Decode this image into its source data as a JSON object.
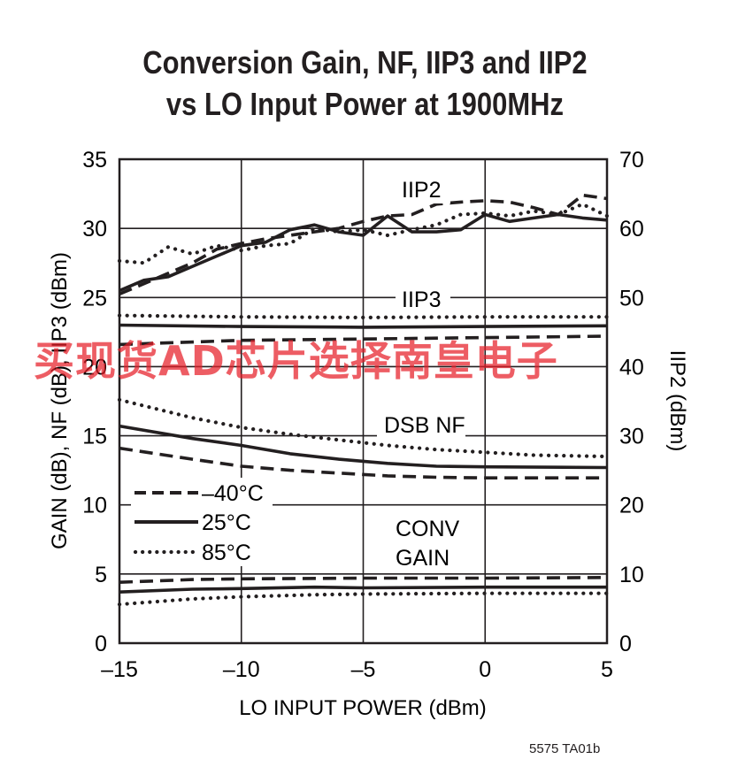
{
  "chart_data": {
    "type": "line",
    "title": [
      "Conversion Gain, NF, IIP3 and IIP2",
      "vs LO Input Power at 1900MHz"
    ],
    "xlabel": "LO INPUT POWER (dBm)",
    "ylabel_left": "GAIN (dB), NF (dB), IIP3 (dBm)",
    "ylabel_right": "IIP2 (dBm)",
    "xlim": [
      -15,
      5
    ],
    "ylim_left": [
      0,
      35
    ],
    "ylim_right": [
      0,
      70
    ],
    "xticks": [
      -15,
      -10,
      -5,
      0,
      5
    ],
    "xtick_labels": [
      "–15",
      "–10",
      "–5",
      "0",
      "5"
    ],
    "yticks_left": [
      0,
      5,
      10,
      15,
      20,
      25,
      30,
      35
    ],
    "yticks_right": [
      0,
      10,
      20,
      30,
      40,
      50,
      60,
      70
    ],
    "grid": true,
    "legend": [
      {
        "label": "–40°C",
        "style": "dashed"
      },
      {
        "label": "25°C",
        "style": "solid"
      },
      {
        "label": "85°C",
        "style": "dotted"
      }
    ],
    "annotations": {
      "iip2": "IIP2",
      "iip3": "IIP3",
      "dsbnf": "DSB NF",
      "conv1": "CONV",
      "conv2": "GAIN"
    },
    "series": [
      {
        "group": "IIP2",
        "temp": "–40°C",
        "axis": "right",
        "points": [
          [
            -15,
            50.5
          ],
          [
            -14,
            52
          ],
          [
            -13,
            53.5
          ],
          [
            -12,
            55
          ],
          [
            -11,
            57
          ],
          [
            -10,
            57.8
          ],
          [
            -9,
            58.5
          ],
          [
            -8,
            59
          ],
          [
            -7,
            59.5
          ],
          [
            -6,
            60
          ],
          [
            -5,
            61
          ],
          [
            -4,
            61.8
          ],
          [
            -3,
            62
          ],
          [
            -2,
            63.5
          ],
          [
            -1,
            63.8
          ],
          [
            0,
            64
          ],
          [
            1,
            63.8
          ],
          [
            2,
            63
          ],
          [
            3,
            62
          ],
          [
            4,
            64.8
          ],
          [
            5,
            64.3
          ]
        ]
      },
      {
        "group": "IIP2",
        "temp": "25°C",
        "axis": "right",
        "points": [
          [
            -15,
            51
          ],
          [
            -14,
            52.5
          ],
          [
            -13,
            53
          ],
          [
            -12,
            54.5
          ],
          [
            -11,
            56
          ],
          [
            -10,
            57.5
          ],
          [
            -9,
            58
          ],
          [
            -8,
            59.8
          ],
          [
            -7,
            60.5
          ],
          [
            -6,
            59.5
          ],
          [
            -5,
            59
          ],
          [
            -4,
            61.8
          ],
          [
            -3,
            59.5
          ],
          [
            -2,
            59.5
          ],
          [
            -1,
            59.8
          ],
          [
            0,
            62
          ],
          [
            1,
            61
          ],
          [
            2,
            61.5
          ],
          [
            3,
            62
          ],
          [
            4,
            61.5
          ],
          [
            5,
            61.2
          ]
        ]
      },
      {
        "group": "IIP2",
        "temp": "85°C",
        "axis": "right",
        "points": [
          [
            -15,
            55.3
          ],
          [
            -14,
            55
          ],
          [
            -13,
            57.3
          ],
          [
            -12,
            56.3
          ],
          [
            -11,
            57.5
          ],
          [
            -10,
            56.8
          ],
          [
            -9,
            57.5
          ],
          [
            -8,
            57.8
          ],
          [
            -7,
            60
          ],
          [
            -6,
            59.5
          ],
          [
            -5,
            59.8
          ],
          [
            -4,
            59
          ],
          [
            -3,
            59.8
          ],
          [
            -2,
            60.5
          ],
          [
            -1,
            62
          ],
          [
            0,
            62.2
          ],
          [
            1,
            61.8
          ],
          [
            2,
            62.5
          ],
          [
            3,
            62
          ],
          [
            4,
            63.5
          ],
          [
            5,
            61.8
          ]
        ]
      },
      {
        "group": "IIP3",
        "temp": "–40°C",
        "axis": "left",
        "points": [
          [
            -15,
            21.6
          ],
          [
            -10,
            21.9
          ],
          [
            -5,
            22.0
          ],
          [
            0,
            22.1
          ],
          [
            5,
            22.2
          ]
        ]
      },
      {
        "group": "IIP3",
        "temp": "25°C",
        "axis": "left",
        "points": [
          [
            -15,
            23.0
          ],
          [
            -10,
            22.9
          ],
          [
            -5,
            22.85
          ],
          [
            0,
            22.9
          ],
          [
            5,
            22.95
          ]
        ]
      },
      {
        "group": "IIP3",
        "temp": "85°C",
        "axis": "left",
        "points": [
          [
            -15,
            23.7
          ],
          [
            -10,
            23.6
          ],
          [
            -5,
            23.55
          ],
          [
            0,
            23.6
          ],
          [
            5,
            23.6
          ]
        ]
      },
      {
        "group": "DSB NF",
        "temp": "–40°C",
        "axis": "left",
        "points": [
          [
            -15,
            14.1
          ],
          [
            -12,
            13.3
          ],
          [
            -10,
            12.8
          ],
          [
            -8,
            12.5
          ],
          [
            -6,
            12.3
          ],
          [
            -4,
            12.1
          ],
          [
            -2,
            12.0
          ],
          [
            0,
            11.95
          ],
          [
            5,
            11.95
          ]
        ]
      },
      {
        "group": "DSB NF",
        "temp": "25°C",
        "axis": "left",
        "points": [
          [
            -15,
            15.7
          ],
          [
            -12,
            14.8
          ],
          [
            -10,
            14.3
          ],
          [
            -8,
            13.7
          ],
          [
            -6,
            13.3
          ],
          [
            -4,
            13.0
          ],
          [
            -2,
            12.8
          ],
          [
            0,
            12.75
          ],
          [
            5,
            12.7
          ]
        ]
      },
      {
        "group": "DSB NF",
        "temp": "85°C",
        "axis": "left",
        "points": [
          [
            -15,
            17.6
          ],
          [
            -12,
            16.3
          ],
          [
            -10,
            15.6
          ],
          [
            -8,
            15.1
          ],
          [
            -6,
            14.7
          ],
          [
            -4,
            14.3
          ],
          [
            -2,
            14.0
          ],
          [
            0,
            13.8
          ],
          [
            2,
            13.6
          ],
          [
            5,
            13.5
          ]
        ]
      },
      {
        "group": "CONV GAIN",
        "temp": "–40°C",
        "axis": "left",
        "points": [
          [
            -15,
            4.4
          ],
          [
            -12,
            4.6
          ],
          [
            -10,
            4.65
          ],
          [
            -5,
            4.7
          ],
          [
            0,
            4.7
          ],
          [
            5,
            4.75
          ]
        ]
      },
      {
        "group": "CONV GAIN",
        "temp": "25°C",
        "axis": "left",
        "points": [
          [
            -15,
            3.7
          ],
          [
            -12,
            3.9
          ],
          [
            -10,
            3.95
          ],
          [
            -7,
            4.05
          ],
          [
            -5,
            4.0
          ],
          [
            0,
            4.05
          ],
          [
            5,
            4.05
          ]
        ]
      },
      {
        "group": "CONV GAIN",
        "temp": "85°C",
        "axis": "left",
        "points": [
          [
            -15,
            2.8
          ],
          [
            -12,
            3.2
          ],
          [
            -10,
            3.35
          ],
          [
            -7,
            3.5
          ],
          [
            -5,
            3.55
          ],
          [
            0,
            3.6
          ],
          [
            5,
            3.6
          ]
        ]
      }
    ]
  },
  "watermark": "买现货AD芯片选择南皇电子",
  "figure_id": "5575 TA01b"
}
